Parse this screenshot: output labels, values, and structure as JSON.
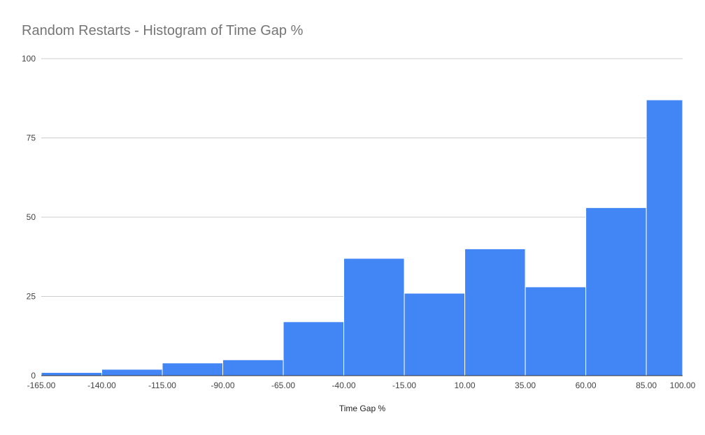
{
  "chart_data": {
    "type": "bar",
    "title": "Random Restarts - Histogram of Time Gap %",
    "xlabel": "Time Gap %",
    "ylabel": "",
    "bin_edges": [
      -165,
      -140,
      -115,
      -90,
      -65,
      -40,
      -15,
      10,
      35,
      60,
      85,
      100
    ],
    "x_tick_labels": [
      "-165.00",
      "-140.00",
      "-115.00",
      "-90.00",
      "-65.00",
      "-40.00",
      "-15.00",
      "10.00",
      "35.00",
      "60.00",
      "85.00",
      "100.00"
    ],
    "values": [
      1,
      2,
      4,
      5,
      17,
      37,
      26,
      40,
      28,
      53,
      87
    ],
    "ylim": [
      0,
      100
    ],
    "y_ticks": [
      0,
      25,
      50,
      75,
      100
    ],
    "grid": true,
    "legend": "none",
    "bar_color": "#4285f4"
  }
}
